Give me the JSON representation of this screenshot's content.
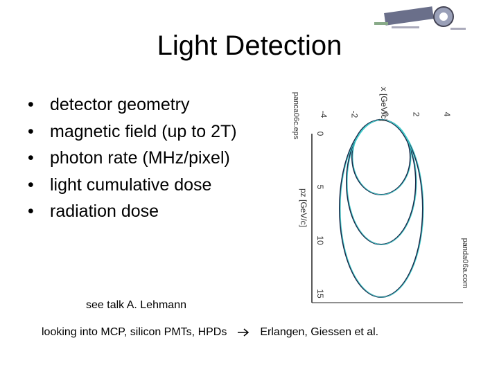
{
  "title": "Light Detection",
  "bullets": [
    "detector geometry",
    "magnetic field (up to 2T)",
    "photon rate (MHz/pixel)",
    "light cumulative dose",
    "radiation dose"
  ],
  "note": "see talk  A. Lehmann",
  "footer": {
    "text": "looking into MCP, silicon PMTs, HPDs",
    "target": "Erlangen, Giessen et al."
  },
  "figure": {
    "file_label_top": "panca06c.eps",
    "file_label_side": "panda06a.com",
    "x_axis_label": "px [GeV/c]",
    "x_ticks": [
      "-4",
      "-2",
      "0",
      "2",
      "4"
    ],
    "y_axis_label": "pz [GeV/c]",
    "y_ticks": [
      "0",
      "5",
      "10",
      "15"
    ]
  }
}
